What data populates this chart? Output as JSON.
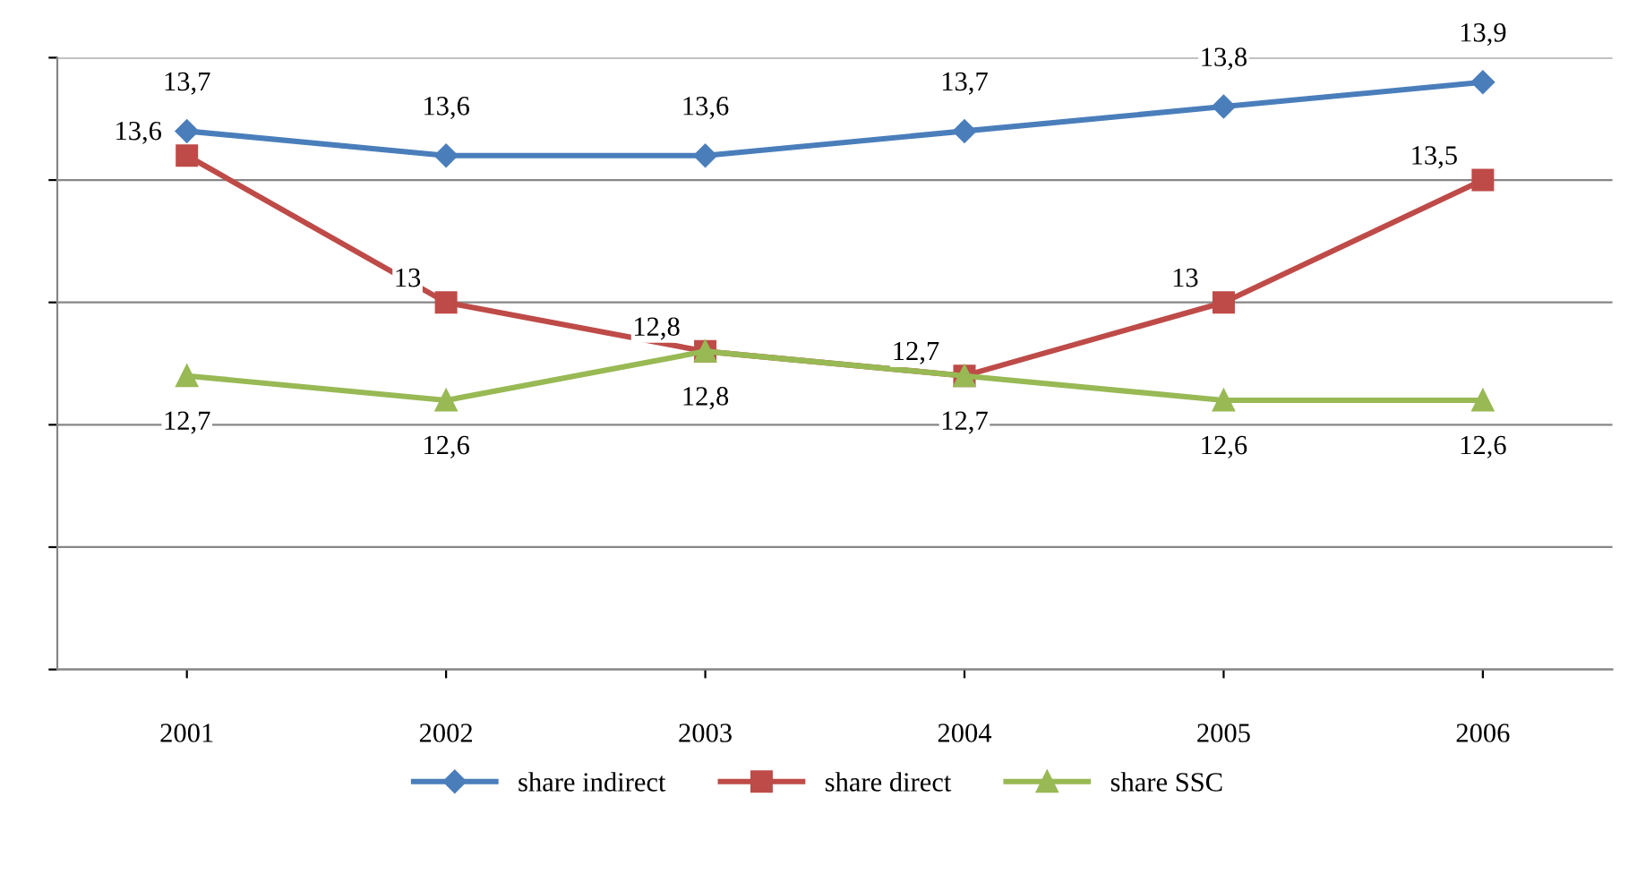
{
  "chart_data": {
    "type": "line",
    "categories": [
      "2001",
      "2002",
      "2003",
      "2004",
      "2005",
      "2006"
    ],
    "series": [
      {
        "name": "share indirect",
        "color": "#4a7ebb",
        "marker": "diamond",
        "values": [
          13.7,
          13.6,
          13.6,
          13.7,
          13.8,
          13.9
        ],
        "value_labels": [
          "13,7",
          "13,6",
          "13,6",
          "13,7",
          "13,8",
          "13,9"
        ]
      },
      {
        "name": "share direct",
        "color": "#be4b48",
        "marker": "square",
        "values": [
          13.6,
          13.0,
          12.8,
          12.7,
          13.0,
          13.5
        ],
        "value_labels": [
          "13,6",
          "13",
          "12,8",
          "12,7",
          "13",
          "13,5"
        ]
      },
      {
        "name": "share SSC",
        "color": "#98b954",
        "marker": "triangle",
        "values": [
          12.7,
          12.6,
          12.8,
          12.7,
          12.6,
          12.6
        ],
        "value_labels": [
          "12,7",
          "12,6",
          "12,8",
          "12,7",
          "12,6",
          "12,6"
        ]
      }
    ],
    "ylim": [
      11.5,
      14
    ],
    "yticks": [
      {
        "value": 11.5,
        "label": null
      },
      {
        "value": 12,
        "label": null
      },
      {
        "value": 12.5,
        "label": null
      },
      {
        "value": 13,
        "label": null
      },
      {
        "value": 13.5,
        "label": null
      },
      {
        "value": 14,
        "label": null
      }
    ],
    "tick_labels": "x",
    "grid": "y",
    "legend": "bottom",
    "line_style": "solid"
  }
}
